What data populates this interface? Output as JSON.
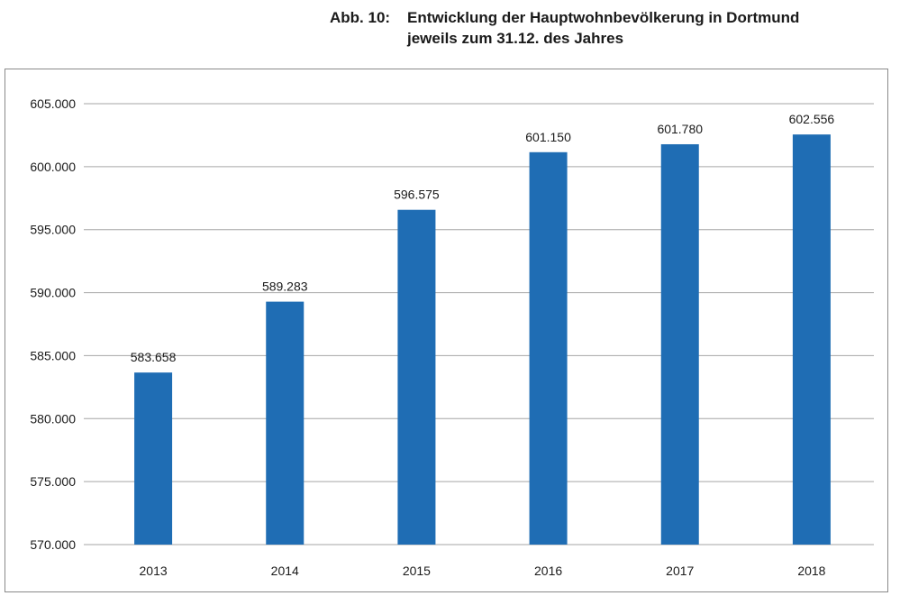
{
  "chart_data": {
    "type": "bar",
    "title_prefix": "Abb. 10:",
    "title_lines": [
      "Entwicklung der Hauptwohnbevölkerung in Dortmund",
      "jeweils zum 31.12. des Jahres"
    ],
    "categories": [
      "2013",
      "2014",
      "2015",
      "2016",
      "2017",
      "2018"
    ],
    "values": [
      583658,
      589283,
      596575,
      601150,
      601780,
      602556
    ],
    "data_labels": [
      "583.658",
      "589.283",
      "596.575",
      "601.150",
      "601.780",
      "602.556"
    ],
    "y_ticks": [
      570000,
      575000,
      580000,
      585000,
      590000,
      595000,
      600000,
      605000
    ],
    "y_tick_labels": [
      "570.000",
      "575.000",
      "580.000",
      "585.000",
      "590.000",
      "595.000",
      "600.000",
      "605.000"
    ],
    "ylim": [
      570000,
      605000
    ],
    "grid": true,
    "bar_color": "#1f6db4",
    "xlabel": "",
    "ylabel": ""
  }
}
